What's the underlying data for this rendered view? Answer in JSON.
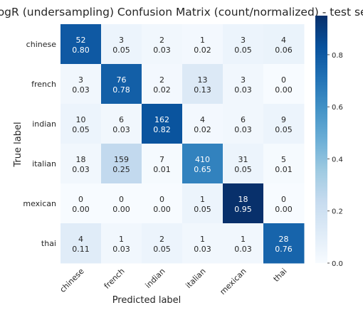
{
  "chart_data": {
    "type": "heatmap",
    "title": "LogR (undersampling) Confusion Matrix (count/normalized) - test set",
    "xlabel": "Predicted label",
    "ylabel": "True label",
    "classes": [
      "chinese",
      "french",
      "indian",
      "italian",
      "mexican",
      "thai"
    ],
    "counts": [
      [
        52,
        3,
        2,
        1,
        3,
        4
      ],
      [
        3,
        76,
        2,
        13,
        3,
        0
      ],
      [
        10,
        6,
        162,
        4,
        6,
        9
      ],
      [
        18,
        159,
        7,
        410,
        31,
        5
      ],
      [
        0,
        0,
        0,
        1,
        18,
        0
      ],
      [
        4,
        1,
        2,
        1,
        1,
        28
      ]
    ],
    "normalized": [
      [
        "0.80",
        "0.05",
        "0.03",
        "0.02",
        "0.05",
        "0.06"
      ],
      [
        "0.03",
        "0.78",
        "0.02",
        "0.13",
        "0.03",
        "0.00"
      ],
      [
        "0.05",
        "0.03",
        "0.82",
        "0.02",
        "0.03",
        "0.05"
      ],
      [
        "0.03",
        "0.25",
        "0.01",
        "0.65",
        "0.05",
        "0.01"
      ],
      [
        "0.00",
        "0.00",
        "0.00",
        "0.05",
        "0.95",
        "0.00"
      ],
      [
        "0.11",
        "0.03",
        "0.05",
        "0.03",
        "0.03",
        "0.76"
      ]
    ],
    "colorbar": {
      "range": [
        0,
        0.95
      ],
      "ticks": [
        "0.0",
        "0.2",
        "0.4",
        "0.6",
        "0.8"
      ],
      "colormap": "Blues"
    },
    "grid": false
  }
}
